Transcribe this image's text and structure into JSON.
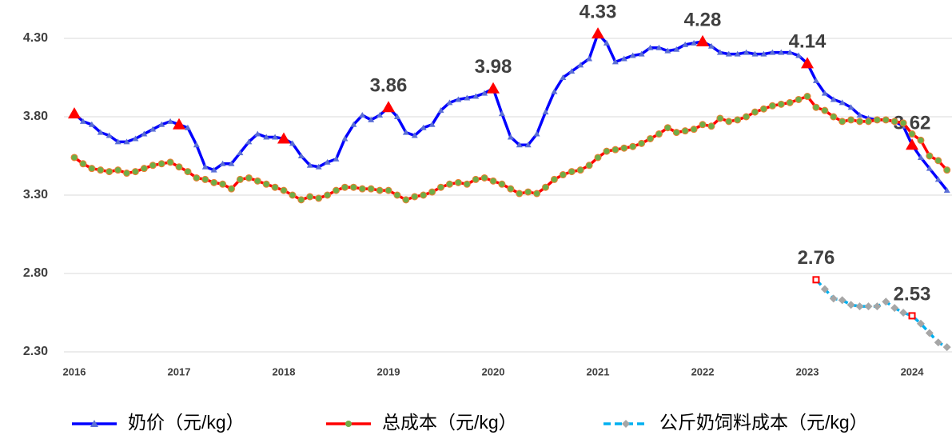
{
  "chart_data": {
    "type": "line",
    "categories": [
      "2016",
      null,
      null,
      null,
      null,
      null,
      null,
      null,
      null,
      null,
      null,
      null,
      "2017",
      null,
      null,
      null,
      null,
      null,
      null,
      null,
      null,
      null,
      null,
      null,
      "2018",
      null,
      null,
      null,
      null,
      null,
      null,
      null,
      null,
      null,
      null,
      null,
      "2019",
      null,
      null,
      null,
      null,
      null,
      null,
      null,
      null,
      null,
      null,
      null,
      "2020",
      null,
      null,
      null,
      null,
      null,
      null,
      null,
      null,
      null,
      null,
      null,
      "2021",
      null,
      null,
      null,
      null,
      null,
      null,
      null,
      null,
      null,
      null,
      null,
      "2022",
      null,
      null,
      null,
      null,
      null,
      null,
      null,
      null,
      null,
      null,
      null,
      "2023",
      null,
      null,
      null,
      null,
      null,
      null,
      null,
      null,
      null,
      null,
      null,
      "2024",
      null,
      null,
      null,
      null
    ],
    "series": [
      {
        "name": "奶价（元/kg）",
        "color": "#0000ff",
        "marker_color": "#5b6fd6",
        "highlight_color": "#ff0000",
        "values": [
          3.82,
          3.77,
          3.75,
          3.7,
          3.68,
          3.64,
          3.64,
          3.66,
          3.69,
          3.72,
          3.75,
          3.77,
          3.75,
          3.73,
          3.62,
          3.48,
          3.46,
          3.5,
          3.5,
          3.57,
          3.64,
          3.69,
          3.67,
          3.67,
          3.66,
          3.63,
          3.55,
          3.49,
          3.48,
          3.51,
          3.53,
          3.66,
          3.75,
          3.81,
          3.78,
          3.81,
          3.86,
          3.8,
          3.7,
          3.68,
          3.73,
          3.75,
          3.84,
          3.89,
          3.91,
          3.92,
          3.93,
          3.95,
          3.98,
          3.82,
          3.67,
          3.62,
          3.62,
          3.69,
          3.83,
          3.96,
          4.05,
          4.09,
          4.13,
          4.17,
          4.33,
          4.27,
          4.15,
          4.17,
          4.19,
          4.2,
          4.24,
          4.24,
          4.22,
          4.23,
          4.26,
          4.27,
          4.28,
          4.25,
          4.21,
          4.2,
          4.2,
          4.21,
          4.2,
          4.2,
          4.21,
          4.21,
          4.21,
          4.19,
          4.14,
          4.03,
          3.95,
          3.91,
          3.89,
          3.86,
          3.81,
          3.79,
          3.78,
          3.78,
          3.77,
          3.74,
          3.62,
          3.54,
          3.47,
          3.4,
          3.33
        ],
        "value_labels": [
          null,
          null,
          null,
          null,
          null,
          null,
          null,
          null,
          null,
          null,
          null,
          null,
          null,
          null,
          null,
          null,
          null,
          null,
          null,
          null,
          null,
          null,
          null,
          null,
          null,
          null,
          null,
          null,
          null,
          null,
          null,
          null,
          null,
          null,
          null,
          null,
          "3.86",
          null,
          null,
          null,
          null,
          null,
          null,
          null,
          null,
          null,
          null,
          null,
          "3.98",
          null,
          null,
          null,
          null,
          null,
          null,
          null,
          null,
          null,
          null,
          null,
          "4.33",
          null,
          null,
          null,
          null,
          null,
          null,
          null,
          null,
          null,
          null,
          null,
          "4.28",
          null,
          null,
          null,
          null,
          null,
          null,
          null,
          null,
          null,
          null,
          null,
          "4.14",
          null,
          null,
          null,
          null,
          null,
          null,
          null,
          null,
          null,
          null,
          null,
          "3.62",
          null,
          null,
          null,
          null
        ]
      },
      {
        "name": "总成本（元/kg）",
        "color": "#ff0000",
        "marker_color": "#70ad47",
        "values": [
          3.54,
          3.5,
          3.47,
          3.46,
          3.45,
          3.46,
          3.44,
          3.45,
          3.47,
          3.49,
          3.5,
          3.51,
          3.48,
          3.45,
          3.41,
          3.4,
          3.38,
          3.37,
          3.34,
          3.4,
          3.41,
          3.39,
          3.37,
          3.35,
          3.33,
          3.3,
          3.27,
          3.29,
          3.28,
          3.3,
          3.33,
          3.35,
          3.35,
          3.34,
          3.34,
          3.33,
          3.33,
          3.3,
          3.27,
          3.29,
          3.3,
          3.32,
          3.35,
          3.37,
          3.38,
          3.37,
          3.4,
          3.41,
          3.39,
          3.37,
          3.34,
          3.31,
          3.32,
          3.31,
          3.35,
          3.4,
          3.43,
          3.45,
          3.46,
          3.49,
          3.54,
          3.58,
          3.59,
          3.6,
          3.61,
          3.63,
          3.66,
          3.69,
          3.73,
          3.7,
          3.71,
          3.72,
          3.75,
          3.74,
          3.79,
          3.77,
          3.78,
          3.8,
          3.83,
          3.85,
          3.87,
          3.88,
          3.89,
          3.91,
          3.93,
          3.86,
          3.84,
          3.8,
          3.77,
          3.78,
          3.77,
          3.77,
          3.78,
          3.78,
          3.77,
          3.76,
          3.69,
          3.65,
          3.55,
          3.52,
          3.46
        ]
      },
      {
        "name": "公斤奶饲料成本（元/kg）",
        "color": "#00b0f0",
        "marker_color": "#a6a6a6",
        "highlight_color": "#ff0000",
        "dashed": true,
        "values": [
          null,
          null,
          null,
          null,
          null,
          null,
          null,
          null,
          null,
          null,
          null,
          null,
          null,
          null,
          null,
          null,
          null,
          null,
          null,
          null,
          null,
          null,
          null,
          null,
          null,
          null,
          null,
          null,
          null,
          null,
          null,
          null,
          null,
          null,
          null,
          null,
          null,
          null,
          null,
          null,
          null,
          null,
          null,
          null,
          null,
          null,
          null,
          null,
          null,
          null,
          null,
          null,
          null,
          null,
          null,
          null,
          null,
          null,
          null,
          null,
          null,
          null,
          null,
          null,
          null,
          null,
          null,
          null,
          null,
          null,
          null,
          null,
          null,
          null,
          null,
          null,
          null,
          null,
          null,
          null,
          null,
          null,
          null,
          null,
          null,
          2.76,
          2.7,
          2.64,
          2.63,
          2.6,
          2.59,
          2.59,
          2.59,
          2.62,
          2.58,
          2.55,
          2.53,
          2.48,
          2.42,
          2.36,
          2.33
        ],
        "value_labels": [
          null,
          null,
          null,
          null,
          null,
          null,
          null,
          null,
          null,
          null,
          null,
          null,
          null,
          null,
          null,
          null,
          null,
          null,
          null,
          null,
          null,
          null,
          null,
          null,
          null,
          null,
          null,
          null,
          null,
          null,
          null,
          null,
          null,
          null,
          null,
          null,
          null,
          null,
          null,
          null,
          null,
          null,
          null,
          null,
          null,
          null,
          null,
          null,
          null,
          null,
          null,
          null,
          null,
          null,
          null,
          null,
          null,
          null,
          null,
          null,
          null,
          null,
          null,
          null,
          null,
          null,
          null,
          null,
          null,
          null,
          null,
          null,
          null,
          null,
          null,
          null,
          null,
          null,
          null,
          null,
          null,
          null,
          null,
          null,
          null,
          "2.76",
          null,
          null,
          null,
          null,
          null,
          null,
          null,
          null,
          null,
          null,
          "2.53",
          null,
          null,
          null,
          null
        ]
      }
    ],
    "ylim": [
      2.3,
      4.3
    ],
    "yticks": [
      {
        "value": 2.3,
        "label": "2.30"
      },
      {
        "value": 2.8,
        "label": "2.80"
      },
      {
        "value": 3.3,
        "label": "3.30"
      },
      {
        "value": 3.8,
        "label": "3.80"
      },
      {
        "value": 4.3,
        "label": "4.30"
      }
    ],
    "grid": true,
    "legend": "bottom"
  }
}
